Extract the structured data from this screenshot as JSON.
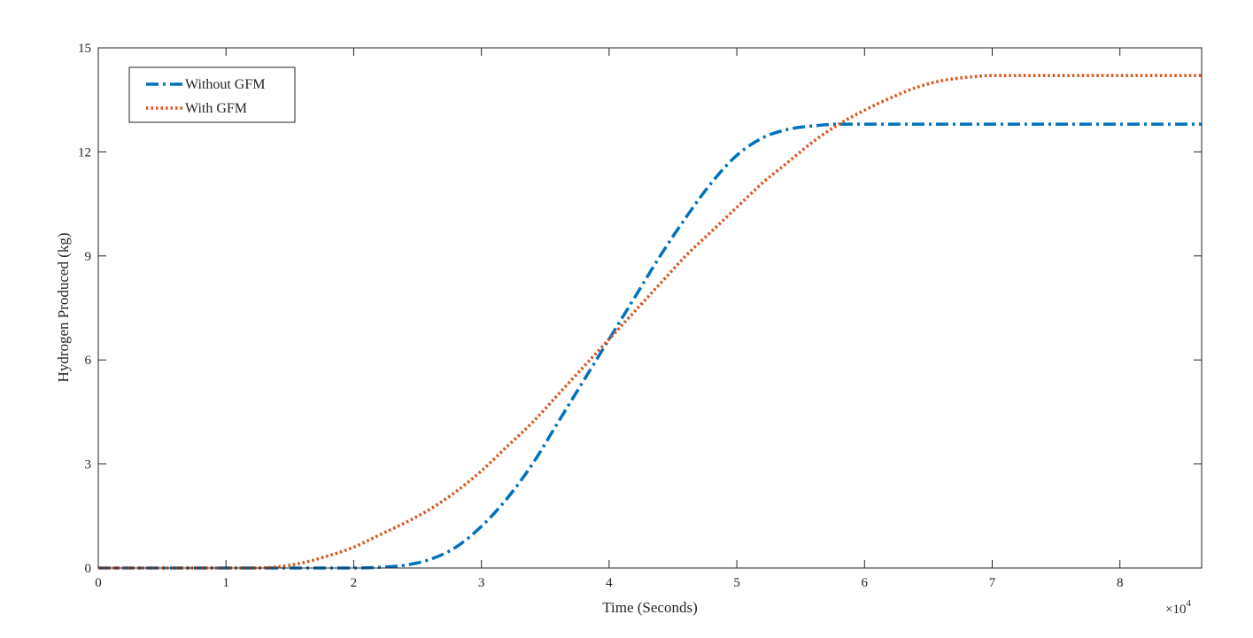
{
  "chart_data": {
    "type": "line",
    "title": "",
    "xlabel": "Time (Seconds)",
    "ylabel": "Hydrogen Produced (kg)",
    "x_exponent_label": "×10",
    "x_exponent_power": "4",
    "xlim": [
      0,
      86400
    ],
    "ylim": [
      0,
      15
    ],
    "x_tick_values": [
      0,
      10000,
      20000,
      30000,
      40000,
      50000,
      60000,
      70000,
      80000
    ],
    "x_tick_labels": [
      "0",
      "1",
      "2",
      "3",
      "4",
      "5",
      "6",
      "7",
      "8"
    ],
    "y_tick_values": [
      0,
      3,
      6,
      9,
      12,
      15
    ],
    "y_tick_labels": [
      "0",
      "3",
      "6",
      "9",
      "12",
      "15"
    ],
    "grid": false,
    "legend_position": "top-left",
    "series": [
      {
        "name": "Without GFM",
        "color": "#0072BD",
        "style": "dash-dot",
        "x": [
          0,
          10000,
          20000,
          22000,
          24000,
          26000,
          28000,
          30000,
          32000,
          34000,
          36000,
          38000,
          40000,
          42000,
          44000,
          46000,
          48000,
          50000,
          52000,
          54000,
          56000,
          58000,
          60000,
          64000,
          70000,
          80000,
          86400
        ],
        "y": [
          0,
          0,
          0,
          0.02,
          0.08,
          0.25,
          0.6,
          1.2,
          2.0,
          3.0,
          4.2,
          5.4,
          6.6,
          7.8,
          9.0,
          10.1,
          11.1,
          11.9,
          12.4,
          12.65,
          12.75,
          12.8,
          12.8,
          12.8,
          12.8,
          12.8,
          12.8
        ]
      },
      {
        "name": "With GFM",
        "color": "#D95319",
        "style": "dotted",
        "x": [
          0,
          12000,
          14000,
          16000,
          18000,
          20000,
          22000,
          24000,
          26000,
          28000,
          30000,
          32000,
          34000,
          36000,
          38000,
          40000,
          42000,
          44000,
          46000,
          48000,
          50000,
          52000,
          54000,
          56000,
          58000,
          60000,
          62000,
          64000,
          66000,
          68000,
          70000,
          72000,
          76000,
          80000,
          86400
        ],
        "y": [
          0,
          0,
          0.03,
          0.15,
          0.35,
          0.6,
          0.95,
          1.3,
          1.7,
          2.2,
          2.8,
          3.5,
          4.2,
          5.0,
          5.8,
          6.6,
          7.4,
          8.2,
          9.0,
          9.7,
          10.4,
          11.1,
          11.7,
          12.3,
          12.8,
          13.2,
          13.55,
          13.85,
          14.05,
          14.15,
          14.2,
          14.2,
          14.2,
          14.2,
          14.2
        ]
      }
    ]
  }
}
